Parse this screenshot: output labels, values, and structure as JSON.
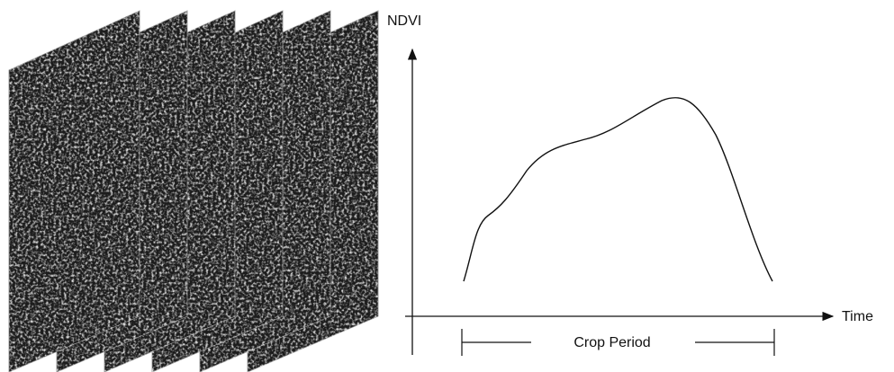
{
  "y_axis_label": "NDVI",
  "x_axis_label": "Time",
  "period_label": "Crop Period"
}
